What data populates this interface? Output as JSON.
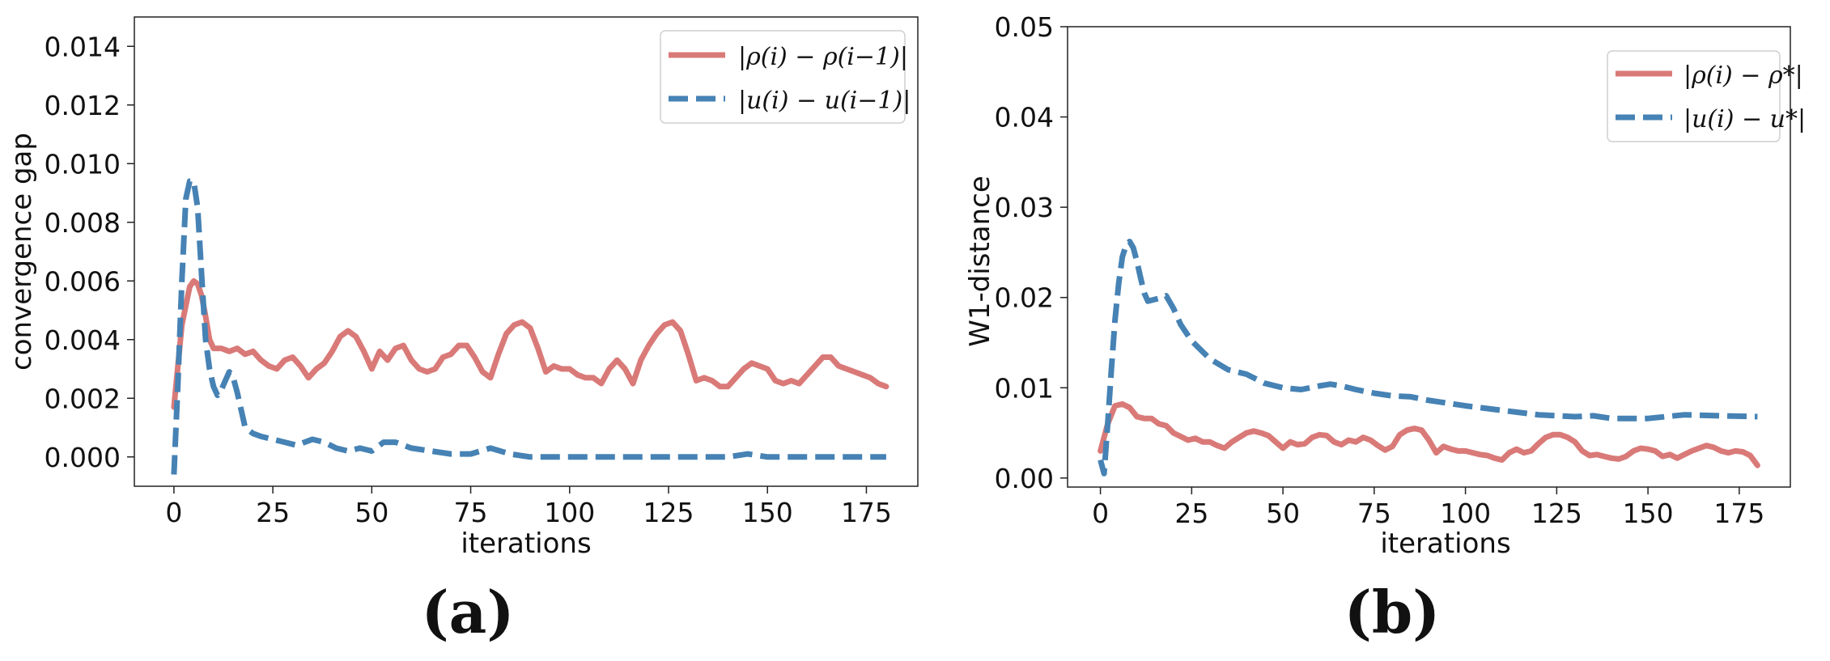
{
  "colors": {
    "rho": "#d97a78",
    "u": "#4682b4"
  },
  "chart_data": [
    {
      "type": "line",
      "panel_label": "(a)",
      "xlabel": "iterations",
      "ylabel": "convergence gap",
      "xlim": [
        -10,
        188
      ],
      "ylim": [
        -0.001,
        0.015
      ],
      "xticks": [
        0,
        25,
        50,
        75,
        100,
        125,
        150,
        175
      ],
      "yticks": [
        0.0,
        0.002,
        0.004,
        0.006,
        0.008,
        0.01,
        0.012,
        0.014
      ],
      "ytick_labels": [
        "0.000",
        "0.002",
        "0.004",
        "0.006",
        "0.008",
        "0.010",
        "0.012",
        "0.014"
      ],
      "legend_position": "top-right",
      "series": [
        {
          "name": "|ρ(i) − ρ(i−1)|",
          "style": "solid",
          "x": [
            0,
            2,
            4,
            5,
            6,
            7,
            8,
            9,
            10,
            12,
            14,
            16,
            18,
            20,
            22,
            24,
            26,
            28,
            30,
            32,
            34,
            36,
            38,
            40,
            42,
            44,
            46,
            48,
            50,
            52,
            54,
            56,
            58,
            60,
            62,
            64,
            66,
            68,
            70,
            72,
            74,
            76,
            78,
            80,
            82,
            84,
            86,
            88,
            90,
            92,
            94,
            96,
            98,
            100,
            102,
            104,
            106,
            108,
            110,
            112,
            114,
            116,
            118,
            120,
            122,
            124,
            126,
            128,
            130,
            132,
            134,
            136,
            138,
            140,
            142,
            144,
            146,
            148,
            150,
            152,
            154,
            156,
            158,
            160,
            162,
            164,
            166,
            168,
            170,
            172,
            174,
            176,
            178,
            180
          ],
          "values": [
            0.0017,
            0.0045,
            0.0058,
            0.006,
            0.0059,
            0.0055,
            0.0048,
            0.004,
            0.0037,
            0.0037,
            0.0036,
            0.0037,
            0.0035,
            0.0036,
            0.0033,
            0.0031,
            0.003,
            0.0033,
            0.0034,
            0.0031,
            0.0027,
            0.003,
            0.0032,
            0.0036,
            0.0041,
            0.0043,
            0.0041,
            0.0036,
            0.003,
            0.0036,
            0.0033,
            0.0037,
            0.0038,
            0.0033,
            0.003,
            0.0029,
            0.003,
            0.0034,
            0.0035,
            0.0038,
            0.0038,
            0.0034,
            0.0029,
            0.0027,
            0.0035,
            0.0042,
            0.0045,
            0.0046,
            0.0044,
            0.0037,
            0.0029,
            0.0031,
            0.003,
            0.003,
            0.0028,
            0.0027,
            0.0027,
            0.0025,
            0.003,
            0.0033,
            0.003,
            0.0025,
            0.0033,
            0.0038,
            0.0042,
            0.0045,
            0.0046,
            0.0043,
            0.0035,
            0.0026,
            0.0027,
            0.0026,
            0.0024,
            0.0024,
            0.0027,
            0.003,
            0.0032,
            0.0031,
            0.003,
            0.0026,
            0.0025,
            0.0026,
            0.0025,
            0.0028,
            0.0031,
            0.0034,
            0.0034,
            0.0031,
            0.003,
            0.0029,
            0.0028,
            0.0027,
            0.0025,
            0.0024
          ]
        },
        {
          "name": "|u(i) − u(i−1)|",
          "style": "dashed",
          "x": [
            0,
            1,
            2,
            3,
            4,
            5,
            6,
            7,
            8,
            9,
            10,
            11,
            12,
            13,
            14,
            15,
            16,
            18,
            20,
            22,
            25,
            28,
            31,
            35,
            38,
            41,
            44,
            47,
            50,
            53,
            56,
            60,
            65,
            70,
            75,
            80,
            85,
            90,
            95,
            100,
            110,
            120,
            130,
            140,
            145,
            150,
            160,
            170,
            180
          ],
          "values": [
            -0.0006,
            0.0025,
            0.006,
            0.0088,
            0.0094,
            0.0094,
            0.0085,
            0.0062,
            0.004,
            0.003,
            0.0024,
            0.0021,
            0.0023,
            0.0026,
            0.0029,
            0.0027,
            0.0022,
            0.001,
            0.0008,
            0.0007,
            0.0006,
            0.0005,
            0.0004,
            0.0006,
            0.0005,
            0.0003,
            0.0002,
            0.0003,
            0.0002,
            0.0005,
            0.0005,
            0.0003,
            0.0002,
            0.0001,
            0.0001,
            0.0003,
            0.0001,
            0.0,
            0.0,
            0.0,
            0.0,
            0.0,
            0.0,
            0.0,
            0.0001,
            0.0,
            0.0,
            0.0,
            0.0
          ]
        }
      ]
    },
    {
      "type": "line",
      "panel_label": "(b)",
      "xlabel": "iterations",
      "ylabel": "W1-distance",
      "xlim": [
        -9,
        189
      ],
      "ylim": [
        -0.001,
        0.05
      ],
      "xticks": [
        0,
        25,
        50,
        75,
        100,
        125,
        150,
        175
      ],
      "yticks": [
        0.0,
        0.01,
        0.02,
        0.03,
        0.04,
        0.05
      ],
      "ytick_labels": [
        "0.00",
        "0.01",
        "0.02",
        "0.03",
        "0.04",
        "0.05"
      ],
      "legend_position": "top-right",
      "series": [
        {
          "name": "|ρ(i) − ρ*|",
          "style": "solid",
          "x": [
            0,
            2,
            4,
            6,
            8,
            10,
            12,
            14,
            16,
            18,
            20,
            22,
            24,
            26,
            28,
            30,
            32,
            34,
            36,
            38,
            40,
            42,
            44,
            46,
            48,
            50,
            52,
            54,
            56,
            58,
            60,
            62,
            64,
            66,
            68,
            70,
            72,
            74,
            76,
            78,
            80,
            82,
            84,
            86,
            88,
            90,
            92,
            94,
            96,
            98,
            100,
            102,
            104,
            106,
            108,
            110,
            112,
            114,
            116,
            118,
            120,
            122,
            124,
            126,
            128,
            130,
            132,
            134,
            136,
            138,
            140,
            142,
            144,
            146,
            148,
            150,
            152,
            154,
            156,
            158,
            160,
            162,
            164,
            166,
            168,
            170,
            172,
            174,
            176,
            178,
            180
          ],
          "values": [
            0.003,
            0.006,
            0.008,
            0.0082,
            0.0078,
            0.0068,
            0.0066,
            0.0066,
            0.006,
            0.0058,
            0.005,
            0.0046,
            0.0042,
            0.0044,
            0.004,
            0.004,
            0.0036,
            0.0033,
            0.004,
            0.0045,
            0.005,
            0.0052,
            0.005,
            0.0047,
            0.004,
            0.0033,
            0.004,
            0.0037,
            0.0038,
            0.0045,
            0.0048,
            0.0047,
            0.004,
            0.0037,
            0.0042,
            0.004,
            0.0045,
            0.0042,
            0.0036,
            0.0031,
            0.0035,
            0.0048,
            0.0053,
            0.0055,
            0.0053,
            0.0042,
            0.0028,
            0.0035,
            0.0032,
            0.003,
            0.003,
            0.0028,
            0.0026,
            0.0025,
            0.0022,
            0.002,
            0.0028,
            0.0032,
            0.0028,
            0.003,
            0.0038,
            0.0045,
            0.0048,
            0.0048,
            0.0045,
            0.004,
            0.003,
            0.0025,
            0.0026,
            0.0024,
            0.0022,
            0.0021,
            0.0024,
            0.003,
            0.0033,
            0.0032,
            0.003,
            0.0024,
            0.0026,
            0.0022,
            0.0026,
            0.003,
            0.0033,
            0.0036,
            0.0034,
            0.003,
            0.0028,
            0.003,
            0.0029,
            0.0025,
            0.0014
          ]
        },
        {
          "name": "|u(i) − u*|",
          "style": "dashed",
          "x": [
            0,
            1,
            2,
            3,
            4,
            5,
            6,
            7,
            8,
            9,
            10,
            11,
            12,
            13,
            14,
            16,
            18,
            20,
            22,
            25,
            30,
            35,
            40,
            45,
            50,
            55,
            60,
            63,
            66,
            70,
            75,
            80,
            85,
            90,
            95,
            100,
            110,
            120,
            130,
            135,
            140,
            150,
            160,
            170,
            180
          ],
          "values": [
            0.002,
            0.0005,
            0.006,
            0.012,
            0.0175,
            0.0215,
            0.0245,
            0.0258,
            0.0262,
            0.0255,
            0.024,
            0.0222,
            0.0205,
            0.0196,
            0.0197,
            0.0199,
            0.0202,
            0.0188,
            0.017,
            0.0152,
            0.0132,
            0.012,
            0.0115,
            0.0105,
            0.01,
            0.0098,
            0.0102,
            0.0104,
            0.0102,
            0.0098,
            0.0094,
            0.0091,
            0.009,
            0.0086,
            0.0083,
            0.008,
            0.0075,
            0.007,
            0.0068,
            0.0069,
            0.0066,
            0.0066,
            0.007,
            0.0069,
            0.0068
          ]
        }
      ]
    }
  ]
}
